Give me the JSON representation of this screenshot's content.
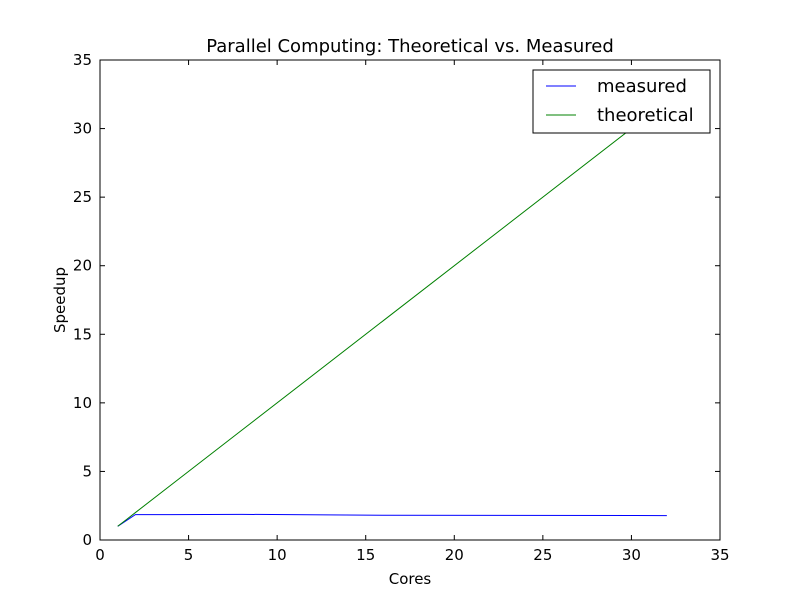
{
  "chart_data": {
    "type": "line",
    "title": "Parallel Computing: Theoretical vs. Measured",
    "xlabel": "Cores",
    "ylabel": "Speedup",
    "xlim": [
      0,
      35
    ],
    "ylim": [
      0,
      35
    ],
    "xticks": [
      0,
      5,
      10,
      15,
      20,
      25,
      30,
      35
    ],
    "yticks": [
      0,
      5,
      10,
      15,
      20,
      25,
      30,
      35
    ],
    "grid": false,
    "legend_position": "top-right",
    "series": [
      {
        "name": "measured",
        "color": "#0000ff",
        "x": [
          1,
          2,
          4,
          8,
          16,
          32
        ],
        "y": [
          1.0,
          1.85,
          1.85,
          1.87,
          1.8,
          1.78
        ]
      },
      {
        "name": "theoretical",
        "color": "#008000",
        "x": [
          1,
          2,
          4,
          8,
          16,
          32
        ],
        "y": [
          1,
          2,
          4,
          8,
          16,
          32
        ]
      }
    ]
  }
}
